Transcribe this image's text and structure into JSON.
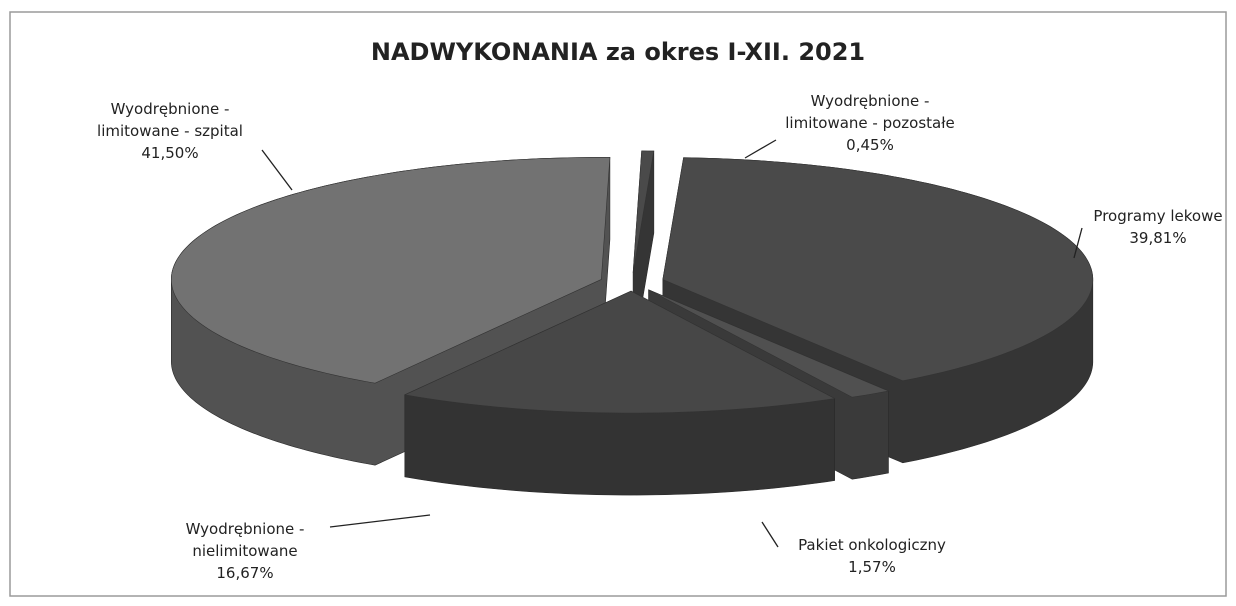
{
  "chart_data": {
    "type": "pie3d",
    "title": "NADWYKONANIA za okres I-XII. 2021",
    "categories": [
      "Wyodrębnione - limitowane - pozostałe",
      "Programy lekowe",
      "Pakiet onkologiczny",
      "Wyodrębnione - nielimitowane",
      "Wyodrębnione - limitowane - szpital"
    ],
    "values": [
      0.45,
      39.81,
      1.57,
      16.67,
      41.5
    ],
    "value_labels": [
      "0,45%",
      "39,81%",
      "1,57%",
      "16,67%",
      "41,50%"
    ],
    "colors": [
      "#4a4a4a",
      "#4a4a4a",
      "#505050",
      "#474747",
      "#727272"
    ]
  }
}
